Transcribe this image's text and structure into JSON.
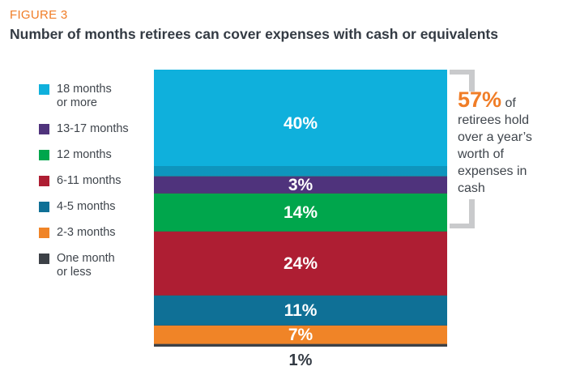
{
  "header": {
    "figure_label": "FIGURE 3",
    "title": "Number of months retirees can cover expenses with cash or equivalents"
  },
  "chart_data": {
    "type": "bar",
    "subtype": "stacked_single_column",
    "orientation": "vertical",
    "title": "Number of months retirees can cover expenses with cash or equivalents",
    "unit": "percent",
    "total": 100,
    "legend_position": "left",
    "grid": false,
    "categories": [
      "18 months or more",
      "13-17 months",
      "12 months",
      "6-11 months",
      "4-5 months",
      "2-3 months",
      "One month or less"
    ],
    "values": [
      40,
      3,
      14,
      24,
      11,
      7,
      1
    ],
    "segments": [
      {
        "label": "18 months or more",
        "legend_label": "18 months\nor more",
        "value": 40,
        "value_label": "40%",
        "color": "#0FB0DC",
        "label_outside": false
      },
      {
        "label": "13-17 months",
        "legend_label": "13-17 months",
        "value": 3,
        "value_label": "3%",
        "color": "#4F337C",
        "label_outside": false
      },
      {
        "label": "12 months",
        "legend_label": "12 months",
        "value": 14,
        "value_label": "14%",
        "color": "#00A64C",
        "label_outside": false
      },
      {
        "label": "6-11 months",
        "legend_label": "6-11 months",
        "value": 24,
        "value_label": "24%",
        "color": "#AE1E33",
        "label_outside": false
      },
      {
        "label": "4-5 months",
        "legend_label": "4-5 months",
        "value": 11,
        "value_label": "11%",
        "color": "#0F7096",
        "label_outside": false
      },
      {
        "label": "2-3 months",
        "legend_label": "2-3 months",
        "value": 7,
        "value_label": "7%",
        "color": "#F08427",
        "label_outside": false
      },
      {
        "label": "One month or less",
        "legend_label": "One month\nor less",
        "value": 1,
        "value_label": "1%",
        "color": "#3C4147",
        "label_outside": true
      }
    ],
    "annotation": {
      "stat": "57%",
      "text": "of retirees hold over a year’s worth of expenses in cash"
    }
  },
  "callout": {
    "stat": "57%",
    "text": " of retirees hold over a year’s worth of expenses in cash"
  },
  "colors": {
    "accent_orange": "#F07D27",
    "title_text": "#343B44",
    "body_text": "#3F454C",
    "bracket": "#C9CACC",
    "white_label": "#FFFFFF"
  }
}
